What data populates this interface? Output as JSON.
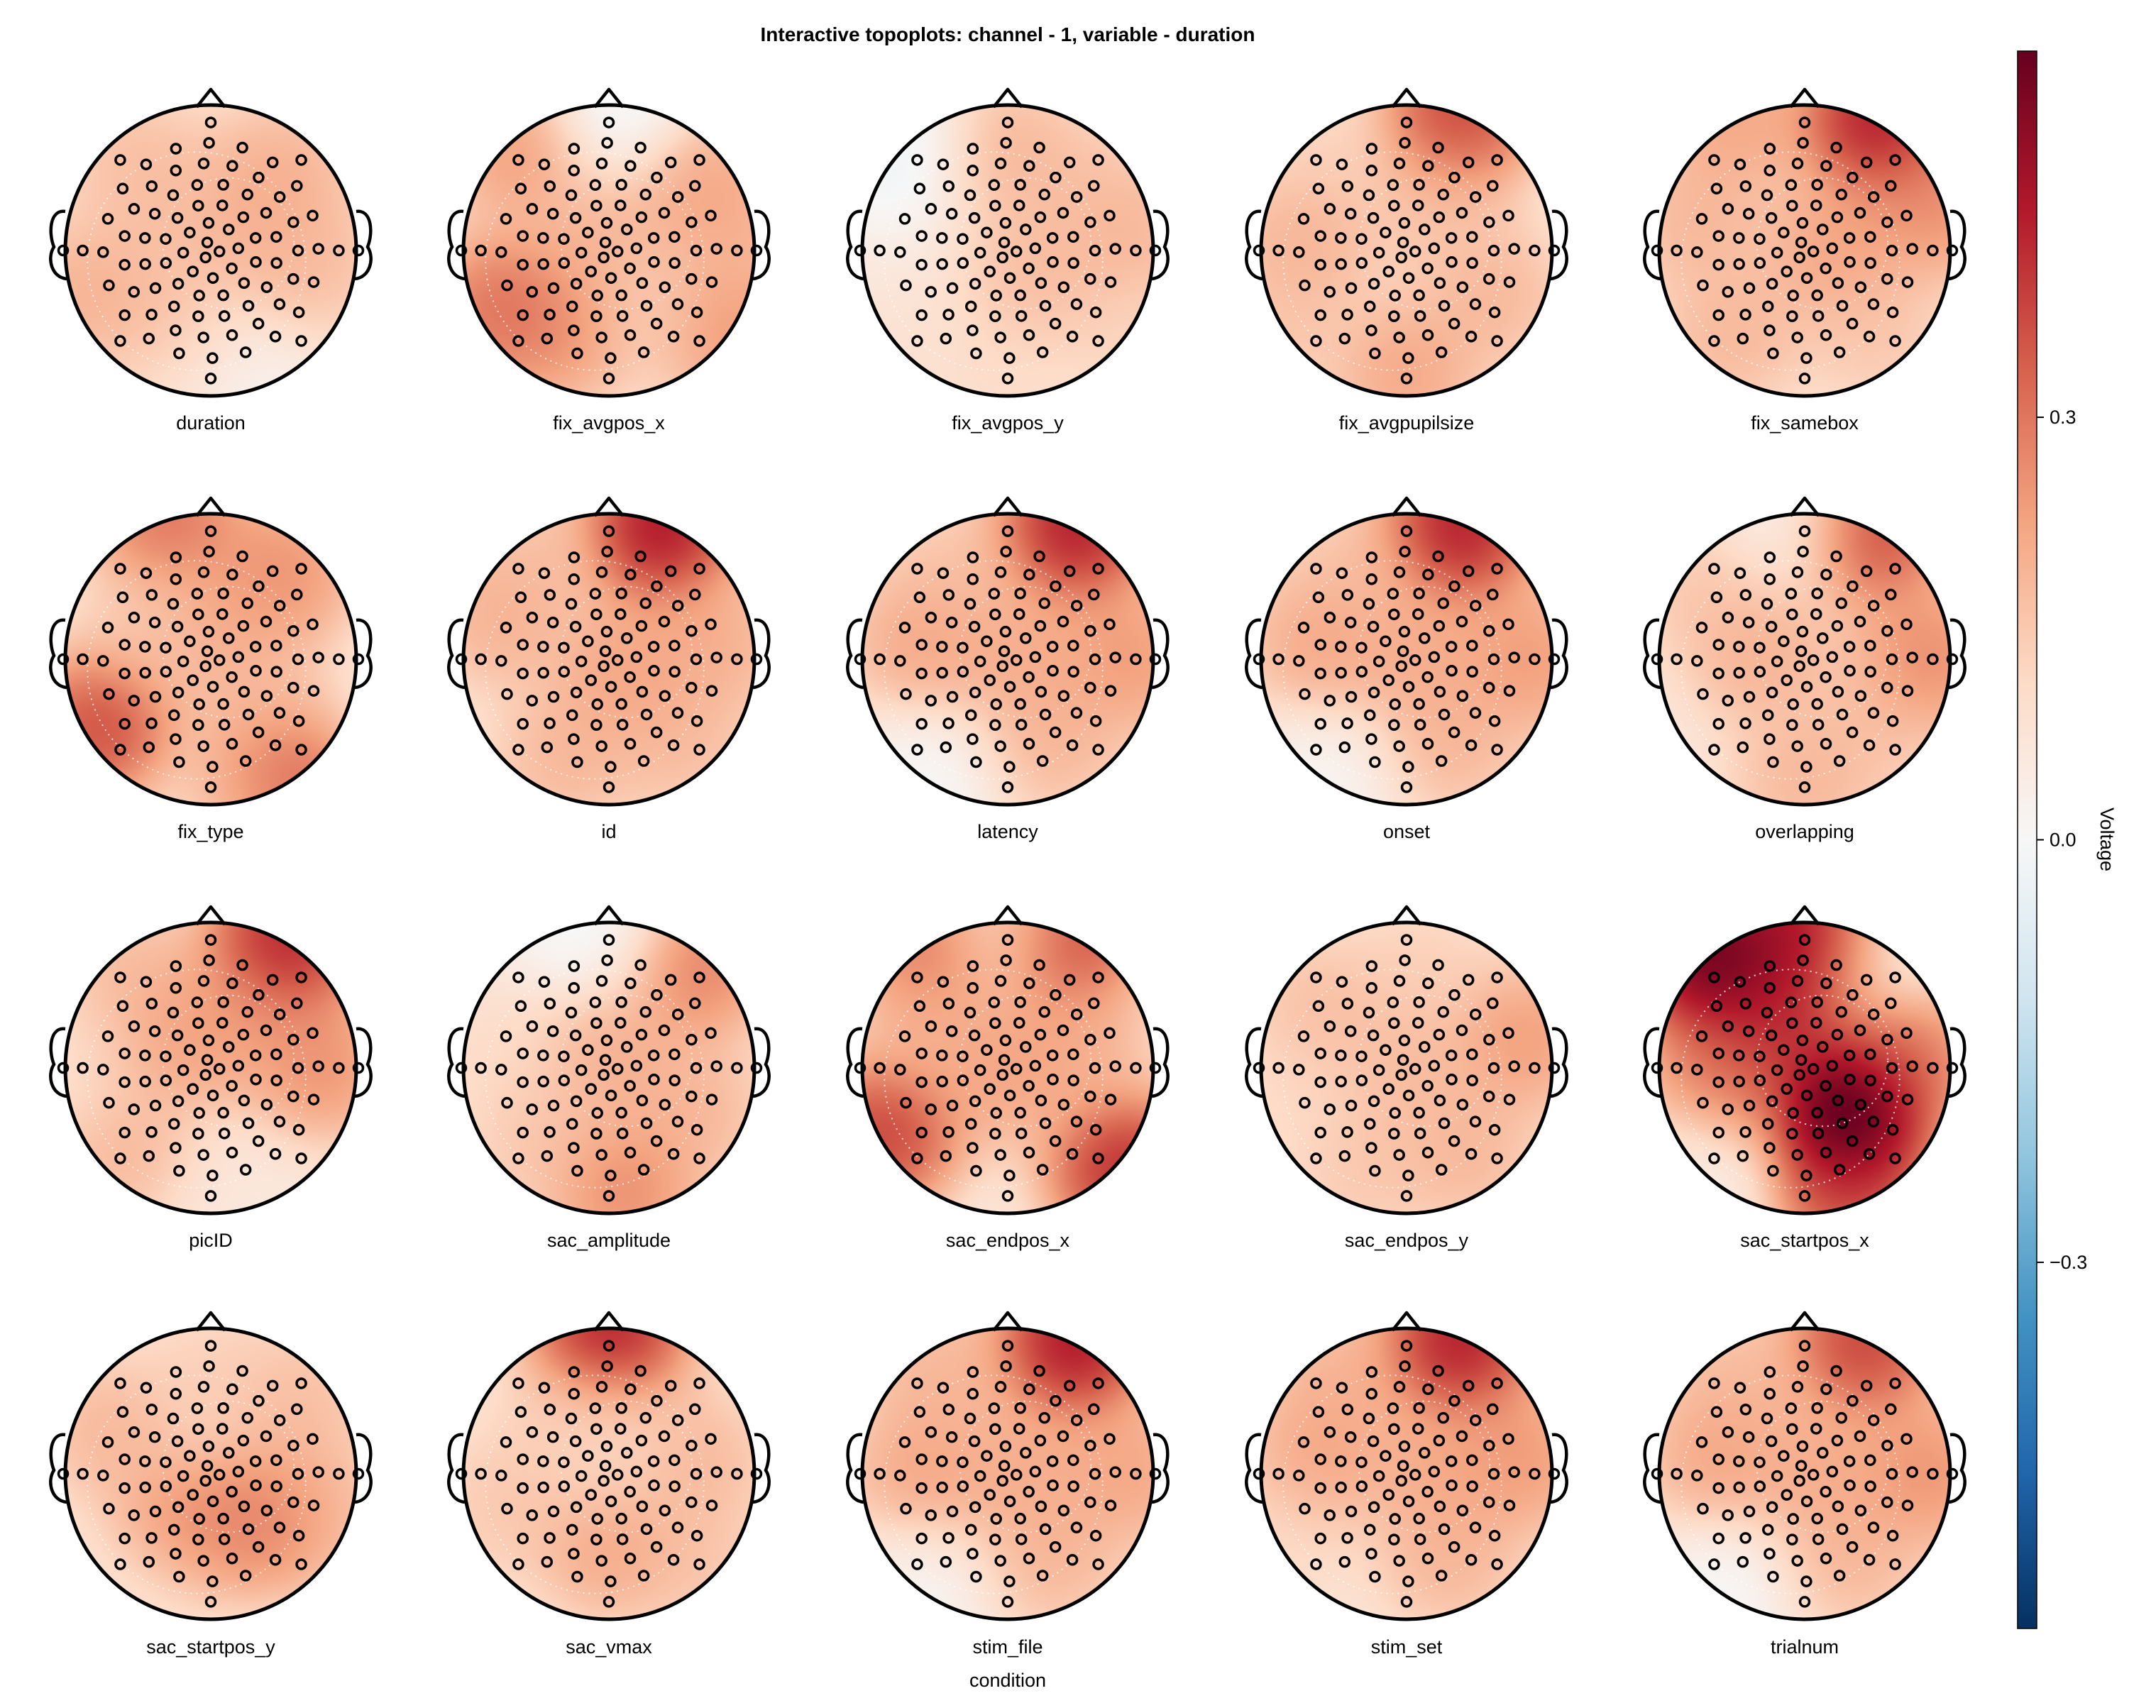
{
  "chart_data": {
    "type": "heatmap",
    "subtype": "topoplot-grid",
    "title": "Interactive topoplots: channel - 1, variable - duration",
    "xlabel": "condition",
    "grid": {
      "rows": 4,
      "cols": 5
    },
    "panels": [
      {
        "label": "duration",
        "blobs": [
          {
            "x": -0.5,
            "y": 0.6,
            "v": 0.18
          },
          {
            "x": 0.5,
            "y": 0.55,
            "v": 0.2
          },
          {
            "x": -0.85,
            "y": -0.3,
            "v": 0.22
          },
          {
            "x": 0.1,
            "y": -0.95,
            "v": -0.08
          },
          {
            "x": 0.25,
            "y": 0.25,
            "v": 0.2
          },
          {
            "x": 0.7,
            "y": -0.1,
            "v": 0.18
          },
          {
            "x": -0.3,
            "y": 0.0,
            "v": 0.15
          },
          {
            "x": -0.2,
            "y": -0.7,
            "v": 0.16
          }
        ]
      },
      {
        "label": "fix_avgpos_x",
        "blobs": [
          {
            "x": 0.05,
            "y": 0.95,
            "v": -0.12
          },
          {
            "x": -0.6,
            "y": 0.7,
            "v": 0.28
          },
          {
            "x": -0.75,
            "y": -0.4,
            "v": 0.38
          },
          {
            "x": -0.3,
            "y": -0.55,
            "v": 0.28
          },
          {
            "x": 0.65,
            "y": 0.45,
            "v": 0.25
          },
          {
            "x": 0.85,
            "y": 0.1,
            "v": 0.18
          },
          {
            "x": 0.8,
            "y": -0.55,
            "v": 0.3
          },
          {
            "x": 0.3,
            "y": -0.4,
            "v": 0.08
          },
          {
            "x": 0.0,
            "y": 0.1,
            "v": 0.2
          }
        ]
      },
      {
        "label": "fix_avgpos_y",
        "blobs": [
          {
            "x": -0.75,
            "y": 0.7,
            "v": -0.12
          },
          {
            "x": -0.8,
            "y": -0.7,
            "v": 0.05
          },
          {
            "x": 0.8,
            "y": -0.6,
            "v": 0.1
          },
          {
            "x": 0.0,
            "y": 0.7,
            "v": 0.2
          },
          {
            "x": 0.5,
            "y": 0.4,
            "v": 0.15
          },
          {
            "x": 0.2,
            "y": -0.2,
            "v": 0.18
          },
          {
            "x": -0.1,
            "y": -0.9,
            "v": 0.08
          },
          {
            "x": 0.85,
            "y": 0.1,
            "v": 0.2
          }
        ]
      },
      {
        "label": "fix_avgpupilsize",
        "blobs": [
          {
            "x": 0.35,
            "y": 0.92,
            "v": 0.5
          },
          {
            "x": -0.7,
            "y": 0.1,
            "v": 0.22
          },
          {
            "x": 0.6,
            "y": -0.3,
            "v": 0.2
          },
          {
            "x": 0.0,
            "y": -0.85,
            "v": 0.25
          },
          {
            "x": 0.2,
            "y": 0.3,
            "v": 0.15
          },
          {
            "x": -0.6,
            "y": 0.6,
            "v": 0.1
          },
          {
            "x": -0.85,
            "y": -0.5,
            "v": 0.15
          }
        ]
      },
      {
        "label": "fix_samebox",
        "blobs": [
          {
            "x": 0.5,
            "y": 0.9,
            "v": 0.6
          },
          {
            "x": -0.5,
            "y": 0.9,
            "v": 0.25
          },
          {
            "x": 0.9,
            "y": 0.3,
            "v": 0.3
          },
          {
            "x": -0.75,
            "y": 0.2,
            "v": 0.2
          },
          {
            "x": 0.2,
            "y": 0.0,
            "v": 0.25
          },
          {
            "x": -0.5,
            "y": -0.6,
            "v": 0.2
          },
          {
            "x": 0.5,
            "y": -0.6,
            "v": 0.15
          }
        ]
      },
      {
        "label": "fix_type",
        "blobs": [
          {
            "x": -0.3,
            "y": 0.95,
            "v": 0.38
          },
          {
            "x": -0.75,
            "y": -0.45,
            "v": 0.48
          },
          {
            "x": 0.45,
            "y": -0.85,
            "v": 0.5
          },
          {
            "x": 0.5,
            "y": 0.6,
            "v": 0.3
          },
          {
            "x": 0.1,
            "y": 0.2,
            "v": 0.22
          },
          {
            "x": 0.3,
            "y": -0.3,
            "v": 0.15
          },
          {
            "x": -0.4,
            "y": 0.2,
            "v": 0.12
          },
          {
            "x": 0.2,
            "y": -0.95,
            "v": 0.05
          }
        ]
      },
      {
        "label": "id",
        "blobs": [
          {
            "x": 0.35,
            "y": 0.9,
            "v": 0.62
          },
          {
            "x": -0.75,
            "y": 0.3,
            "v": 0.22
          },
          {
            "x": 0.75,
            "y": 0.1,
            "v": 0.22
          },
          {
            "x": 0.1,
            "y": -0.1,
            "v": 0.25
          },
          {
            "x": -0.3,
            "y": -0.7,
            "v": 0.2
          },
          {
            "x": 0.5,
            "y": -0.6,
            "v": 0.18
          },
          {
            "x": -0.55,
            "y": 0.7,
            "v": 0.15
          }
        ]
      },
      {
        "label": "latency",
        "blobs": [
          {
            "x": 0.45,
            "y": 0.9,
            "v": 0.6
          },
          {
            "x": -0.55,
            "y": -0.8,
            "v": -0.08
          },
          {
            "x": 0.85,
            "y": 0.0,
            "v": 0.28
          },
          {
            "x": -0.6,
            "y": 0.1,
            "v": 0.25
          },
          {
            "x": 0.1,
            "y": 0.0,
            "v": 0.22
          },
          {
            "x": 0.3,
            "y": -0.6,
            "v": 0.2
          },
          {
            "x": -0.4,
            "y": 0.6,
            "v": 0.15
          }
        ]
      },
      {
        "label": "onset",
        "blobs": [
          {
            "x": 0.35,
            "y": 0.9,
            "v": 0.6
          },
          {
            "x": -0.55,
            "y": -0.8,
            "v": -0.06
          },
          {
            "x": 0.85,
            "y": 0.0,
            "v": 0.28
          },
          {
            "x": -0.6,
            "y": 0.1,
            "v": 0.25
          },
          {
            "x": 0.1,
            "y": 0.0,
            "v": 0.22
          },
          {
            "x": 0.3,
            "y": -0.6,
            "v": 0.2
          },
          {
            "x": -0.4,
            "y": 0.6,
            "v": 0.15
          }
        ]
      },
      {
        "label": "overlapping",
        "blobs": [
          {
            "x": 0.45,
            "y": 0.9,
            "v": 0.5
          },
          {
            "x": -0.1,
            "y": 0.95,
            "v": -0.05
          },
          {
            "x": 0.85,
            "y": 0.0,
            "v": 0.32
          },
          {
            "x": -0.3,
            "y": 0.05,
            "v": 0.22
          },
          {
            "x": 0.0,
            "y": -0.85,
            "v": 0.2
          },
          {
            "x": -0.7,
            "y": 0.5,
            "v": 0.15
          },
          {
            "x": 0.4,
            "y": -0.5,
            "v": 0.15
          }
        ]
      },
      {
        "label": "picID",
        "blobs": [
          {
            "x": 0.5,
            "y": 0.85,
            "v": 0.58
          },
          {
            "x": -0.85,
            "y": 0.1,
            "v": 0.05
          },
          {
            "x": 0.75,
            "y": 0.0,
            "v": 0.3
          },
          {
            "x": -0.3,
            "y": 0.2,
            "v": 0.25
          },
          {
            "x": 0.15,
            "y": 0.3,
            "v": 0.22
          },
          {
            "x": -0.6,
            "y": -0.6,
            "v": 0.2
          },
          {
            "x": 0.2,
            "y": -0.9,
            "v": 0.02
          },
          {
            "x": -0.6,
            "y": 0.65,
            "v": 0.18
          }
        ]
      },
      {
        "label": "sac_amplitude",
        "blobs": [
          {
            "x": -0.1,
            "y": 0.95,
            "v": -0.1
          },
          {
            "x": 0.6,
            "y": 0.7,
            "v": 0.35
          },
          {
            "x": -0.8,
            "y": 0.1,
            "v": 0.08
          },
          {
            "x": 0.0,
            "y": 0.1,
            "v": 0.22
          },
          {
            "x": 0.1,
            "y": -0.85,
            "v": 0.32
          },
          {
            "x": 0.6,
            "y": -0.3,
            "v": 0.2
          },
          {
            "x": -0.5,
            "y": -0.5,
            "v": 0.15
          }
        ]
      },
      {
        "label": "sac_endpos_x",
        "blobs": [
          {
            "x": 0.35,
            "y": 0.9,
            "v": 0.58
          },
          {
            "x": -0.5,
            "y": 0.85,
            "v": 0.4
          },
          {
            "x": 0.0,
            "y": 0.95,
            "v": -0.1
          },
          {
            "x": -0.85,
            "y": -0.45,
            "v": 0.5
          },
          {
            "x": 0.8,
            "y": -0.7,
            "v": 0.55
          },
          {
            "x": 0.0,
            "y": 0.0,
            "v": 0.25
          },
          {
            "x": 0.5,
            "y": 0.2,
            "v": 0.2
          },
          {
            "x": -0.5,
            "y": 0.3,
            "v": 0.18
          }
        ]
      },
      {
        "label": "sac_endpos_y",
        "blobs": [
          {
            "x": -0.6,
            "y": 0.4,
            "v": 0.18
          },
          {
            "x": 0.8,
            "y": 0.2,
            "v": 0.28
          },
          {
            "x": 0.0,
            "y": 0.0,
            "v": 0.18
          },
          {
            "x": -0.3,
            "y": -0.7,
            "v": 0.15
          },
          {
            "x": 0.4,
            "y": -0.6,
            "v": 0.2
          },
          {
            "x": 0.1,
            "y": 0.7,
            "v": 0.12
          },
          {
            "x": -0.85,
            "y": -0.2,
            "v": 0.08
          }
        ]
      },
      {
        "label": "sac_startpos_x",
        "blobs": [
          {
            "x": -0.65,
            "y": 0.75,
            "v": 0.75
          },
          {
            "x": 0.1,
            "y": 0.95,
            "v": 0.7
          },
          {
            "x": 0.3,
            "y": -0.3,
            "v": 0.85
          },
          {
            "x": 0.5,
            "y": 0.85,
            "v": -0.08
          },
          {
            "x": -0.75,
            "y": -0.7,
            "v": -0.05
          },
          {
            "x": -0.2,
            "y": 0.35,
            "v": 0.5
          },
          {
            "x": 0.7,
            "y": 0.1,
            "v": 0.35
          },
          {
            "x": -0.6,
            "y": -0.1,
            "v": 0.35
          },
          {
            "x": 0.3,
            "y": -0.85,
            "v": 0.45
          }
        ]
      },
      {
        "label": "sac_startpos_y",
        "blobs": [
          {
            "x": 0.4,
            "y": -0.3,
            "v": 0.35
          },
          {
            "x": -0.2,
            "y": -0.4,
            "v": 0.3
          },
          {
            "x": -0.7,
            "y": 0.3,
            "v": 0.2
          },
          {
            "x": 0.6,
            "y": 0.5,
            "v": 0.18
          },
          {
            "x": -0.5,
            "y": -0.85,
            "v": 0.02
          },
          {
            "x": 0.0,
            "y": 0.7,
            "v": 0.12
          },
          {
            "x": 0.8,
            "y": -0.2,
            "v": 0.15
          }
        ]
      },
      {
        "label": "sac_vmax",
        "blobs": [
          {
            "x": 0.0,
            "y": 0.95,
            "v": 0.6
          },
          {
            "x": -0.7,
            "y": -0.2,
            "v": 0.15
          },
          {
            "x": 0.6,
            "y": 0.1,
            "v": 0.2
          },
          {
            "x": 0.0,
            "y": -0.5,
            "v": 0.25
          },
          {
            "x": -0.3,
            "y": 0.3,
            "v": 0.12
          },
          {
            "x": 0.6,
            "y": -0.6,
            "v": 0.15
          },
          {
            "x": 0.0,
            "y": 0.2,
            "v": 0.05
          }
        ]
      },
      {
        "label": "stim_file",
        "blobs": [
          {
            "x": 0.45,
            "y": 0.9,
            "v": 0.62
          },
          {
            "x": -0.6,
            "y": -0.8,
            "v": -0.06
          },
          {
            "x": 0.85,
            "y": 0.0,
            "v": 0.25
          },
          {
            "x": -0.6,
            "y": 0.0,
            "v": 0.25
          },
          {
            "x": 0.1,
            "y": 0.0,
            "v": 0.22
          },
          {
            "x": 0.3,
            "y": -0.6,
            "v": 0.2
          },
          {
            "x": -0.5,
            "y": 0.7,
            "v": 0.2
          }
        ]
      },
      {
        "label": "stim_set",
        "blobs": [
          {
            "x": 0.35,
            "y": 0.9,
            "v": 0.6
          },
          {
            "x": -0.8,
            "y": -0.5,
            "v": 0.08
          },
          {
            "x": 0.8,
            "y": 0.1,
            "v": 0.28
          },
          {
            "x": -0.6,
            "y": 0.1,
            "v": 0.25
          },
          {
            "x": 0.2,
            "y": 0.0,
            "v": 0.22
          },
          {
            "x": 0.3,
            "y": -0.6,
            "v": 0.2
          },
          {
            "x": -0.5,
            "y": 0.65,
            "v": 0.2
          }
        ]
      },
      {
        "label": "trialnum",
        "blobs": [
          {
            "x": 0.4,
            "y": 0.9,
            "v": 0.5
          },
          {
            "x": -0.55,
            "y": -0.8,
            "v": -0.08
          },
          {
            "x": 0.85,
            "y": 0.0,
            "v": 0.3
          },
          {
            "x": -0.6,
            "y": 0.1,
            "v": 0.25
          },
          {
            "x": 0.1,
            "y": 0.0,
            "v": 0.22
          },
          {
            "x": 0.3,
            "y": -0.6,
            "v": 0.2
          },
          {
            "x": -0.5,
            "y": 0.65,
            "v": 0.18
          }
        ]
      }
    ],
    "colorbar": {
      "label": "Voltage",
      "colormap": "RdBu (reversed)",
      "range": [
        -0.56,
        0.56
      ],
      "ticks": [
        -0.3,
        0.0,
        0.3
      ],
      "tick_labels": [
        "−0.3",
        "0.0",
        "0.3"
      ],
      "placement": "right"
    },
    "electrode_marker": "open black circles",
    "head_outline": "black circle with nose and ears",
    "contours": "white dotted lines"
  },
  "colors": {
    "outline": "#000000",
    "background": "#ffffff",
    "colormap_stops": [
      "#053061",
      "#2166ac",
      "#4393c3",
      "#92c5de",
      "#d1e5f0",
      "#f7f7f7",
      "#fddbc7",
      "#f4a582",
      "#d6604d",
      "#b2182b",
      "#67001f"
    ]
  }
}
